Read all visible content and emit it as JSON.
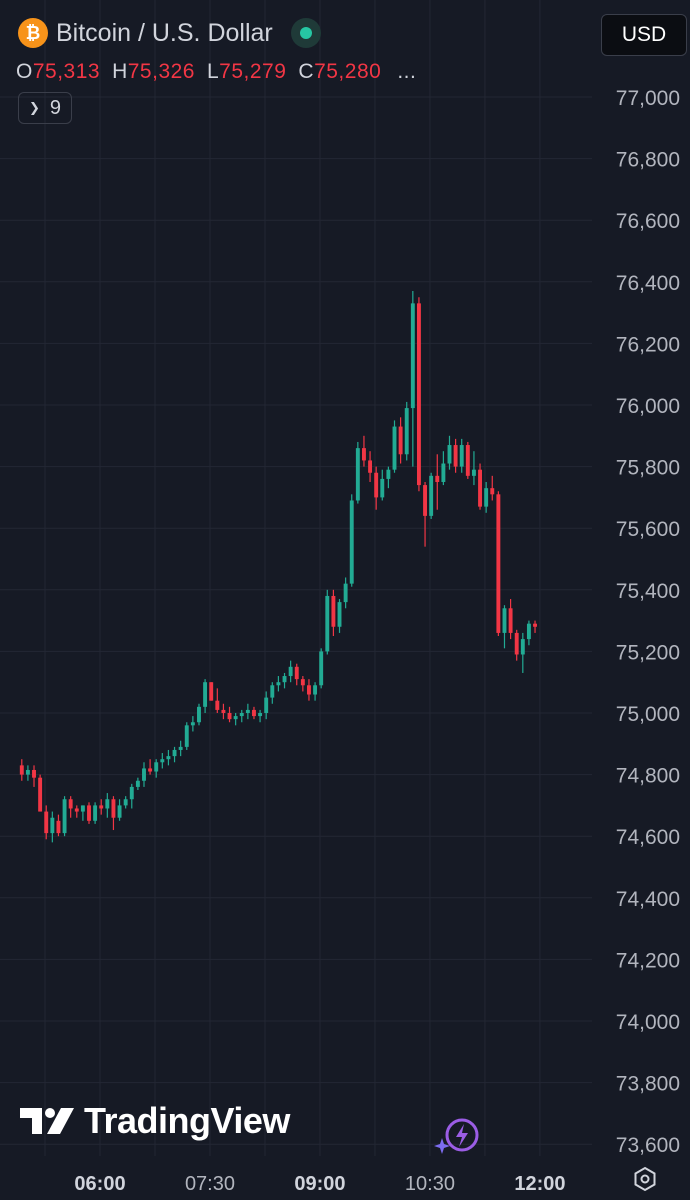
{
  "header": {
    "symbol_icon": "bitcoin-icon",
    "symbol_icon_glyph": "₿",
    "title": "Bitcoin / U.S. Dollar",
    "ohlc": {
      "o_label": "O",
      "o_value": "75,313",
      "h_label": "H",
      "h_value": "75,326",
      "l_label": "L",
      "l_value": "75,279",
      "c_label": "C",
      "c_value": "75,280",
      "more": "..."
    },
    "indicators_count": "9"
  },
  "currency": {
    "label": "USD"
  },
  "watermark": {
    "text": "TradingView"
  },
  "colors": {
    "up": "#22ab94",
    "down": "#f23645",
    "background": "#161a25",
    "grid": "#232734",
    "text": "#b2b5be"
  },
  "chart_data": {
    "type": "candlestick",
    "title": "Bitcoin / U.S. Dollar",
    "yaxis_ticks": [
      73600,
      73800,
      74000,
      74200,
      74400,
      74600,
      74800,
      75000,
      75200,
      75400,
      75600,
      75800,
      76000,
      76200,
      76400,
      76600,
      76800,
      77000
    ],
    "yaxis_tick_labels": [
      "73,600",
      "73,800",
      "74,000",
      "74,200",
      "74,400",
      "74,600",
      "74,800",
      "75,000",
      "75,200",
      "75,400",
      "75,600",
      "75,800",
      "76,000",
      "76,200",
      "76,400",
      "76,600",
      "76,800",
      "77,000"
    ],
    "ylim": [
      73560,
      77080
    ],
    "xaxis_ticks": [
      "06:00",
      "07:30",
      "09:00",
      "10:30",
      "12:00"
    ],
    "x_range": [
      "04:56",
      "12:34"
    ],
    "candle_interval_minutes": 5,
    "candles": [
      [
        74830,
        74850,
        74780,
        74800
      ],
      [
        74800,
        74830,
        74780,
        74815
      ],
      [
        74815,
        74830,
        74760,
        74790
      ],
      [
        74790,
        74800,
        74680,
        74680
      ],
      [
        74680,
        74700,
        74590,
        74610
      ],
      [
        74610,
        74680,
        74580,
        74660
      ],
      [
        74650,
        74670,
        74600,
        74610
      ],
      [
        74610,
        74730,
        74600,
        74720
      ],
      [
        74720,
        74730,
        74660,
        74690
      ],
      [
        74690,
        74700,
        74660,
        74680
      ],
      [
        74680,
        74700,
        74650,
        74700
      ],
      [
        74700,
        74710,
        74640,
        74650
      ],
      [
        74650,
        74710,
        74640,
        74700
      ],
      [
        74700,
        74720,
        74670,
        74690
      ],
      [
        74690,
        74740,
        74660,
        74720
      ],
      [
        74720,
        74730,
        74620,
        74660
      ],
      [
        74660,
        74720,
        74650,
        74700
      ],
      [
        74700,
        74730,
        74690,
        74720
      ],
      [
        74720,
        74770,
        74690,
        74760
      ],
      [
        74760,
        74790,
        74750,
        74780
      ],
      [
        74780,
        74840,
        74760,
        74820
      ],
      [
        74820,
        74850,
        74800,
        74810
      ],
      [
        74810,
        74850,
        74790,
        74840
      ],
      [
        74840,
        74870,
        74820,
        74850
      ],
      [
        74850,
        74880,
        74830,
        74860
      ],
      [
        74860,
        74890,
        74840,
        74880
      ],
      [
        74880,
        74910,
        74860,
        74890
      ],
      [
        74890,
        74970,
        74880,
        74960
      ],
      [
        74960,
        74990,
        74940,
        74970
      ],
      [
        74970,
        75030,
        74960,
        75020
      ],
      [
        75020,
        75110,
        75000,
        75100
      ],
      [
        75100,
        75100,
        75040,
        75040
      ],
      [
        75040,
        75080,
        75000,
        75010
      ],
      [
        75010,
        75030,
        74980,
        75000
      ],
      [
        75000,
        75020,
        74970,
        74980
      ],
      [
        74980,
        75000,
        74960,
        74990
      ],
      [
        74990,
        75010,
        74970,
        75000
      ],
      [
        75000,
        75030,
        74980,
        75010
      ],
      [
        75010,
        75020,
        74980,
        74990
      ],
      [
        74990,
        75010,
        74970,
        75000
      ],
      [
        75000,
        75070,
        74980,
        75050
      ],
      [
        75050,
        75100,
        75030,
        75090
      ],
      [
        75090,
        75120,
        75070,
        75100
      ],
      [
        75100,
        75130,
        75080,
        75120
      ],
      [
        75120,
        75170,
        75100,
        75150
      ],
      [
        75150,
        75160,
        75090,
        75110
      ],
      [
        75110,
        75120,
        75070,
        75090
      ],
      [
        75090,
        75110,
        75040,
        75060
      ],
      [
        75060,
        75100,
        75040,
        75090
      ],
      [
        75090,
        75210,
        75080,
        75200
      ],
      [
        75200,
        75400,
        75190,
        75380
      ],
      [
        75380,
        75400,
        75250,
        75280
      ],
      [
        75280,
        75370,
        75260,
        75360
      ],
      [
        75360,
        75440,
        75340,
        75420
      ],
      [
        75420,
        75710,
        75410,
        75690
      ],
      [
        75690,
        75880,
        75680,
        75860
      ],
      [
        75860,
        75900,
        75800,
        75820
      ],
      [
        75820,
        75850,
        75750,
        75780
      ],
      [
        75780,
        75800,
        75660,
        75700
      ],
      [
        75700,
        75790,
        75690,
        75760
      ],
      [
        75760,
        75800,
        75730,
        75790
      ],
      [
        75790,
        75950,
        75780,
        75930
      ],
      [
        75930,
        75960,
        75810,
        75840
      ],
      [
        75840,
        76010,
        75820,
        75990
      ],
      [
        75990,
        76370,
        75800,
        76330
      ],
      [
        76330,
        76350,
        75720,
        75740
      ],
      [
        75740,
        75750,
        75540,
        75640
      ],
      [
        75640,
        75780,
        75630,
        75770
      ],
      [
        75770,
        75840,
        75660,
        75750
      ],
      [
        75750,
        75850,
        75740,
        75810
      ],
      [
        75810,
        75900,
        75790,
        75870
      ],
      [
        75870,
        75890,
        75780,
        75800
      ],
      [
        75800,
        75890,
        75780,
        75870
      ],
      [
        75870,
        75880,
        75760,
        75770
      ],
      [
        75770,
        75850,
        75740,
        75790
      ],
      [
        75790,
        75810,
        75660,
        75670
      ],
      [
        75670,
        75750,
        75650,
        75730
      ],
      [
        75730,
        75770,
        75690,
        75710
      ],
      [
        75710,
        75720,
        75250,
        75260
      ],
      [
        75260,
        75350,
        75210,
        75340
      ],
      [
        75340,
        75370,
        75240,
        75260
      ],
      [
        75260,
        75270,
        75170,
        75190
      ],
      [
        75190,
        75260,
        75130,
        75240
      ],
      [
        75240,
        75300,
        75220,
        75290
      ],
      [
        75290,
        75300,
        75260,
        75280
      ]
    ],
    "last_candle": {
      "open": 75313,
      "high": 75326,
      "low": 75279,
      "close": 75280
    }
  }
}
